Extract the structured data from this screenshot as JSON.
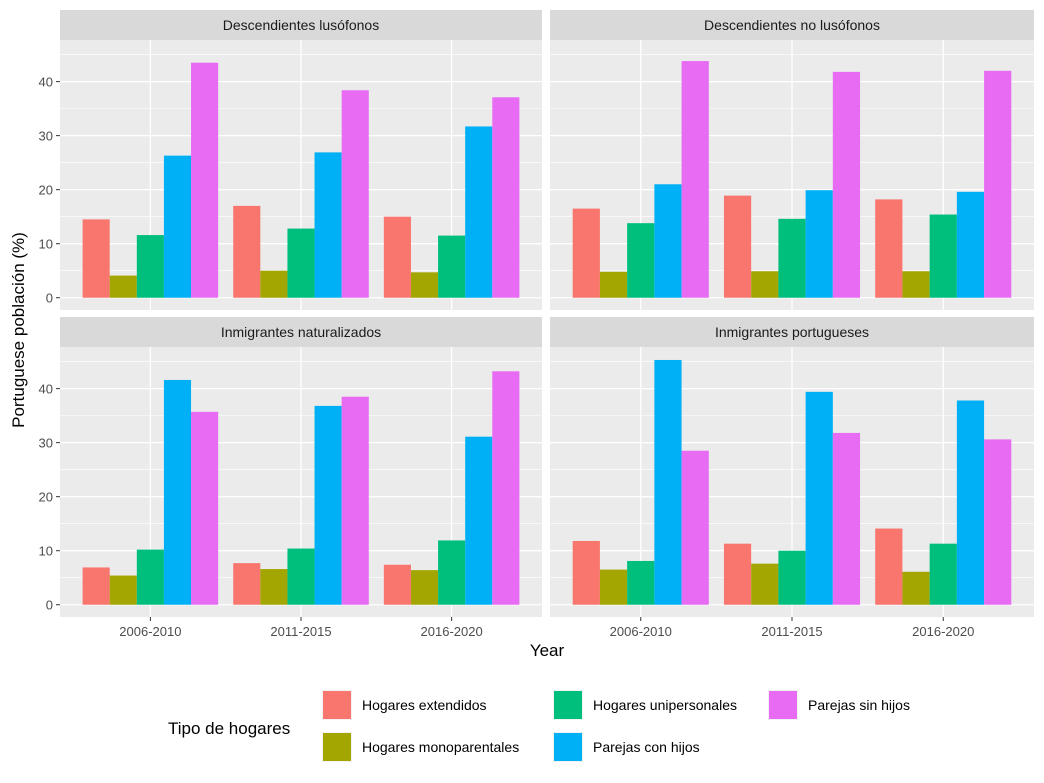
{
  "chart_data": {
    "type": "bar",
    "facets": [
      "Descendientes lusófonos",
      "Descendientes no lusófonos",
      "Inmigrantes naturalizados",
      "Inmigrantes portugueses"
    ],
    "categories": [
      "2006-2010",
      "2011-2015",
      "2016-2020"
    ],
    "xlabel": "Year",
    "ylabel": "Portuguese población (%)",
    "ylim": [
      0,
      47.7
    ],
    "yticks": [
      "0",
      "10",
      "20",
      "30",
      "40"
    ],
    "grid": true,
    "legend": {
      "title": "Tipo de hogares",
      "placement": "bottom"
    },
    "series": [
      {
        "name": "Hogares extendidos",
        "color": "#F8766D"
      },
      {
        "name": "Hogares monoparentales",
        "color": "#A3A500"
      },
      {
        "name": "Hogares unipersonales",
        "color": "#00BF7D"
      },
      {
        "name": "Parejas con hijos",
        "color": "#00B0F6"
      },
      {
        "name": "Parejas sin hijos",
        "color": "#E76BF3"
      }
    ],
    "values": {
      "Descendientes lusófonos": [
        [
          14.5,
          4.1,
          11.6,
          26.3,
          43.5
        ],
        [
          17.0,
          5.0,
          12.8,
          26.9,
          38.4
        ],
        [
          15.0,
          4.7,
          11.5,
          31.7,
          37.1
        ]
      ],
      "Descendientes no lusófonos": [
        [
          16.5,
          4.8,
          13.8,
          21.0,
          43.8
        ],
        [
          18.9,
          4.9,
          14.6,
          19.9,
          41.8
        ],
        [
          18.2,
          4.9,
          15.4,
          19.6,
          42.0
        ]
      ],
      "Inmigrantes naturalizados": [
        [
          6.9,
          5.4,
          10.2,
          41.6,
          35.7
        ],
        [
          7.7,
          6.6,
          10.4,
          36.8,
          38.5
        ],
        [
          7.4,
          6.4,
          11.9,
          31.1,
          43.2
        ]
      ],
      "Inmigrantes portugueses": [
        [
          11.8,
          6.5,
          8.1,
          45.3,
          28.5
        ],
        [
          11.3,
          7.6,
          10.0,
          39.4,
          31.8
        ],
        [
          14.1,
          6.1,
          11.3,
          37.8,
          30.6
        ]
      ]
    }
  }
}
